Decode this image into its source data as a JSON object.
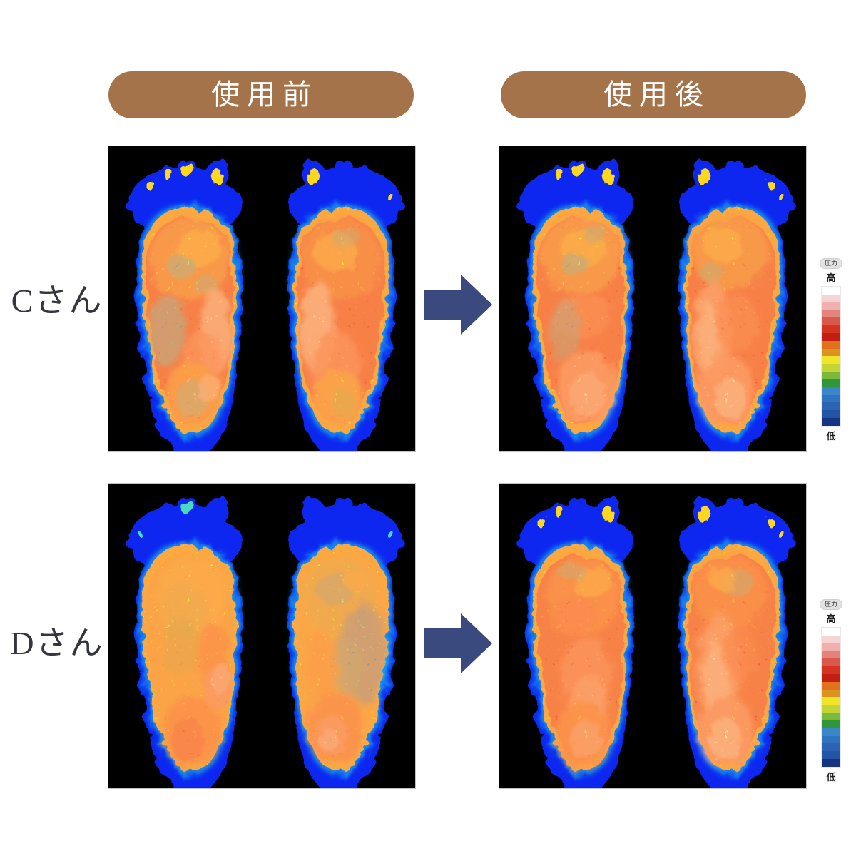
{
  "header": {
    "before_label": "使用前",
    "after_label": "使用後"
  },
  "rows": [
    {
      "label": "Cさん"
    },
    {
      "label": "Dさん"
    }
  ],
  "legend": {
    "badge_label": "圧力",
    "high_label": "高",
    "low_label": "低",
    "colors": [
      "#ffffff",
      "#f7d4d4",
      "#f0b0ad",
      "#e4837b",
      "#d9594b",
      "#d63420",
      "#c21f10",
      "#e2711b",
      "#dc9420",
      "#f2e428",
      "#c3d435",
      "#7cb93a",
      "#2f9639",
      "#3a86c8",
      "#2f74c0",
      "#2a64b2",
      "#2355a6",
      "#15337f"
    ]
  },
  "icons": {
    "arrow_icon": "arrow-right-icon"
  },
  "colors": {
    "page_bg": "#ffffff",
    "pill_bg": "#a5734a",
    "pill_text": "#ffffff",
    "arrow": "#3b4a7e",
    "panel_bg": "#000000",
    "label_text": "#34353d",
    "foot_blue": "#0a28f0",
    "foot_cyan_fringe": "#22d6e8"
  }
}
